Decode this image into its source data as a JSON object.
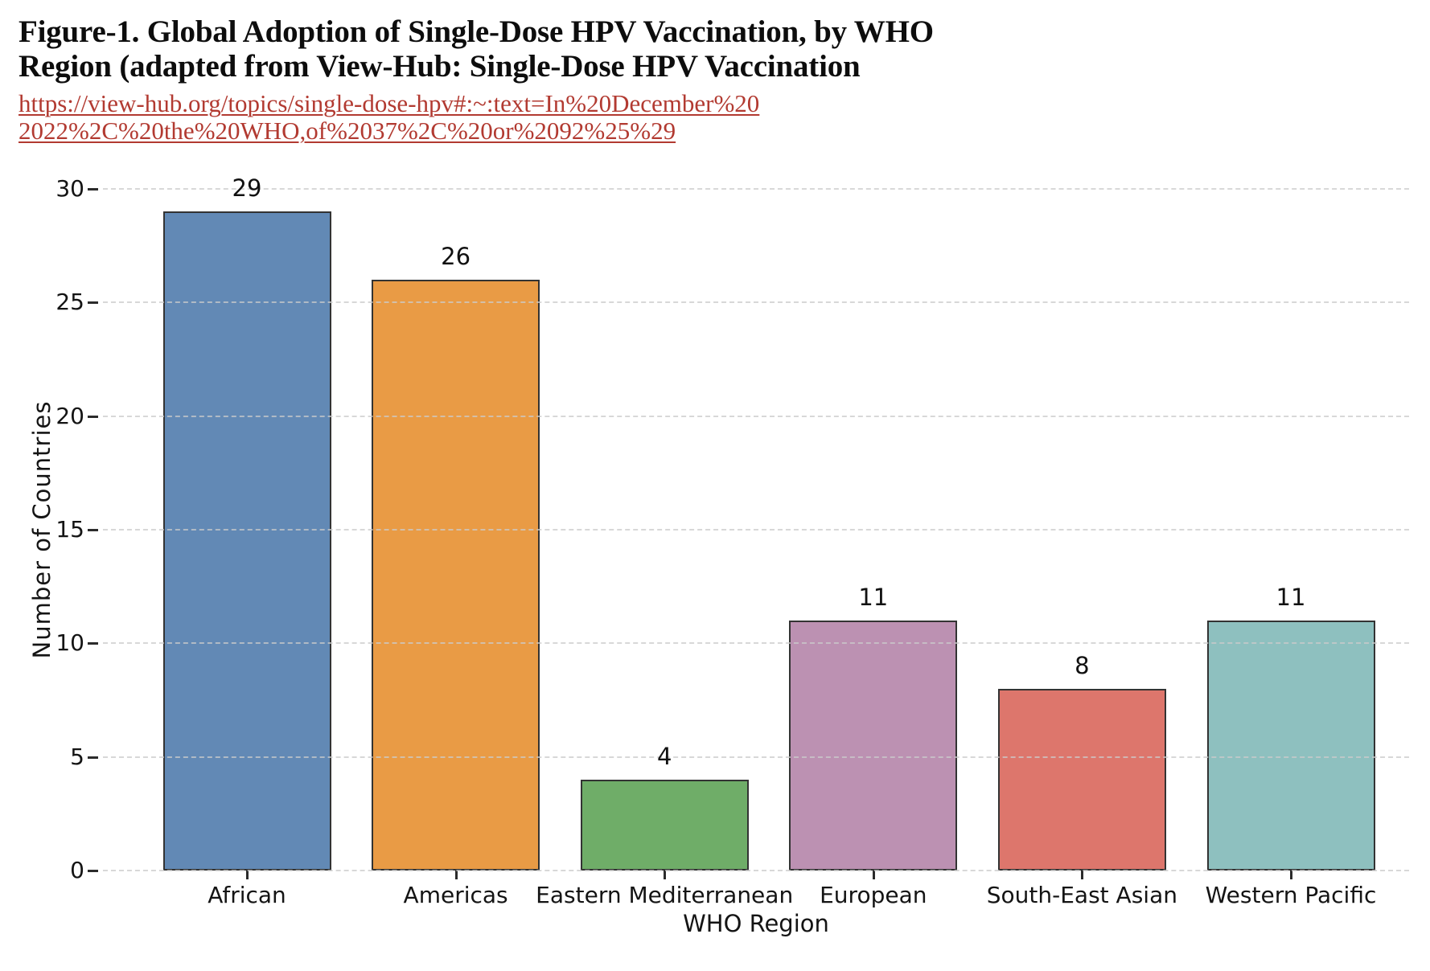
{
  "header": {
    "title_line1": "Figure-1. Global Adoption of Single-Dose HPV Vaccination, by WHO",
    "title_line2": "Region (adapted from View-Hub: Single-Dose HPV Vaccination",
    "link_line1": "https://view-hub.org/topics/single-dose-hpv#:~:text=In%20December%20",
    "link_line2": "2022%2C%20the%20WHO,of%2037%2C%20or%2092%25%29",
    "link_color": "#b23a31",
    "title_color": "#0d0d0d"
  },
  "chart_data": {
    "type": "bar",
    "title": "",
    "categories": [
      "African",
      "Americas",
      "Eastern Mediterranean",
      "European",
      "South-East Asian",
      "Western Pacific"
    ],
    "values": [
      29,
      26,
      4,
      11,
      8,
      11
    ],
    "bar_colors": [
      "#6289b5",
      "#e99b45",
      "#6fad68",
      "#bc91b2",
      "#dd766c",
      "#8ec0bf"
    ],
    "bar_edge_color": "#333333",
    "value_labels": [
      "29",
      "26",
      "4",
      "11",
      "8",
      "11"
    ],
    "xlabel": "WHO Region",
    "ylabel": "Number of Countries",
    "ylim": [
      0,
      30
    ],
    "yticks": [
      0,
      5,
      10,
      15,
      20,
      25,
      30
    ],
    "grid": "horizontal-dashed",
    "grid_color": "#cbcbcb",
    "legend": "none"
  }
}
